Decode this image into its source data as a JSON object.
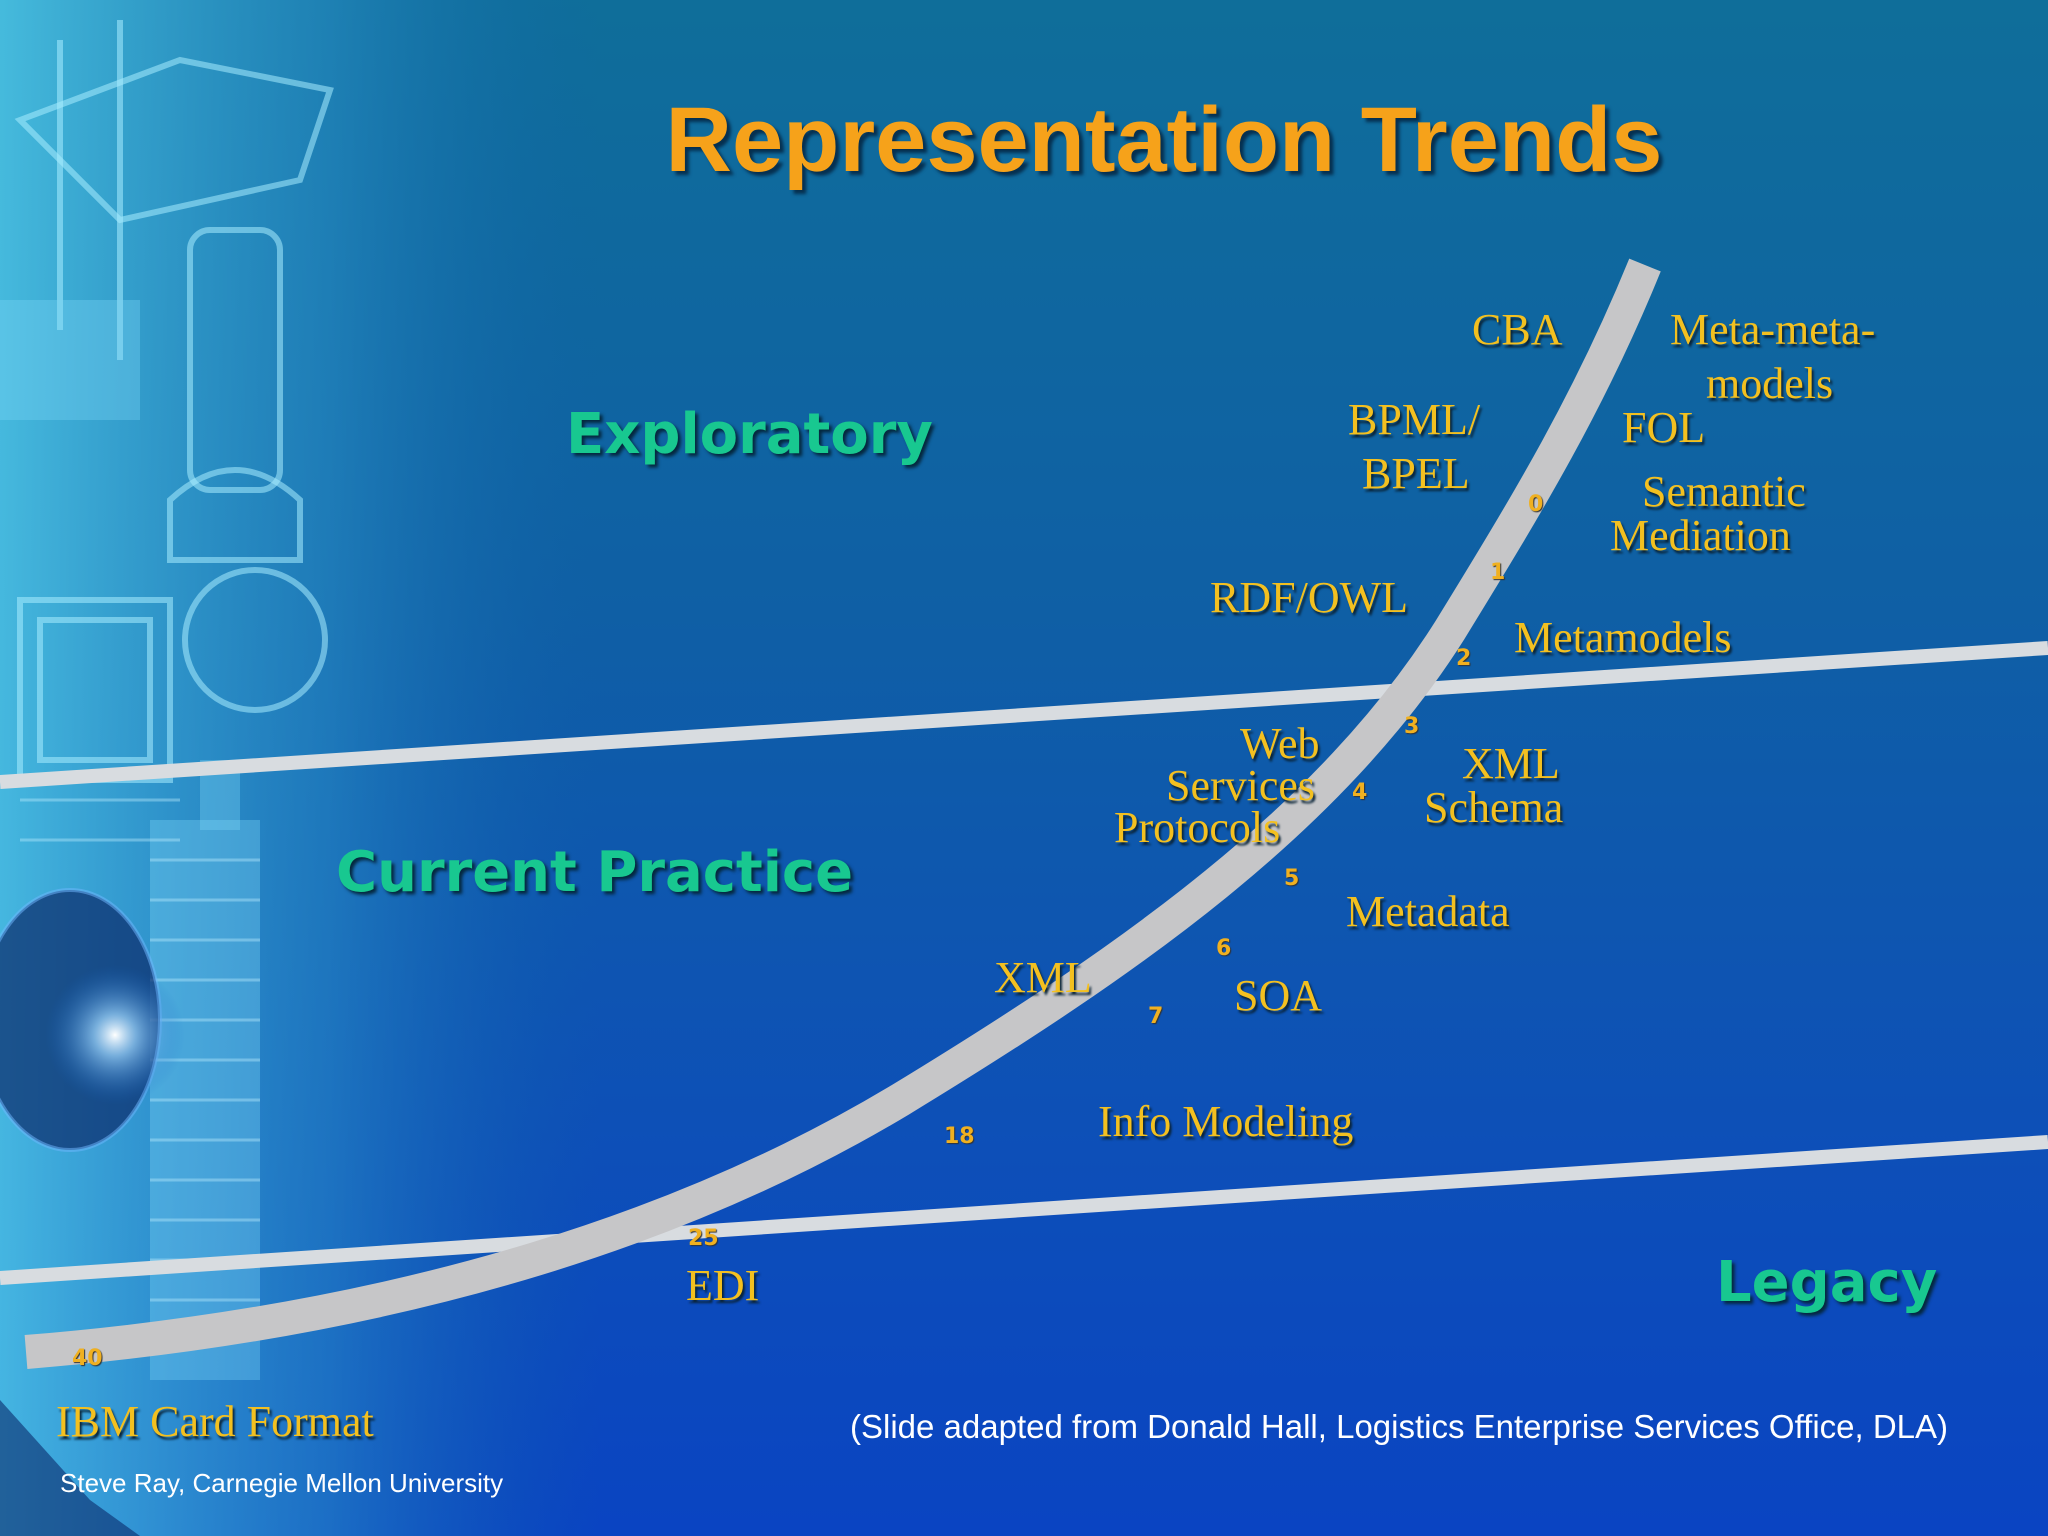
{
  "slide": {
    "title": "Representation Trends",
    "zones": {
      "exploratory": "Exploratory",
      "current_practice": "Current Practice",
      "legacy": "Legacy"
    },
    "terms": {
      "cba": "CBA",
      "meta_meta_1": "Meta-meta-",
      "meta_meta_2": "models",
      "bpml_1": "BPML/",
      "bpml_2": "BPEL",
      "fol": "FOL",
      "semantic_1": "Semantic",
      "semantic_2": "Mediation",
      "rdf_owl": "RDF/OWL",
      "metamodels": "Metamodels",
      "web_1": "Web",
      "web_2": "Services",
      "web_3": "Protocols",
      "xml_schema_1": "XML",
      "xml_schema_2": "Schema",
      "metadata": "Metadata",
      "xml": "XML",
      "soa": "SOA",
      "info_modeling": "Info Modeling",
      "edi": "EDI",
      "ibm_card": "IBM Card Format"
    },
    "curve_ages": [
      "0",
      "1",
      "2",
      "3",
      "4",
      "5",
      "6",
      "7",
      "18",
      "25",
      "40"
    ],
    "source_note": "(Slide adapted from Donald Hall, Logistics Enterprise Services Office, DLA)",
    "author": "Steve Ray, Carnegie Mellon University"
  },
  "colors": {
    "title": "#f6a21a",
    "zone_label": "#18c890",
    "term": "#f3c020",
    "curve": "#c8c8c8",
    "divider": "#d8dce0"
  }
}
